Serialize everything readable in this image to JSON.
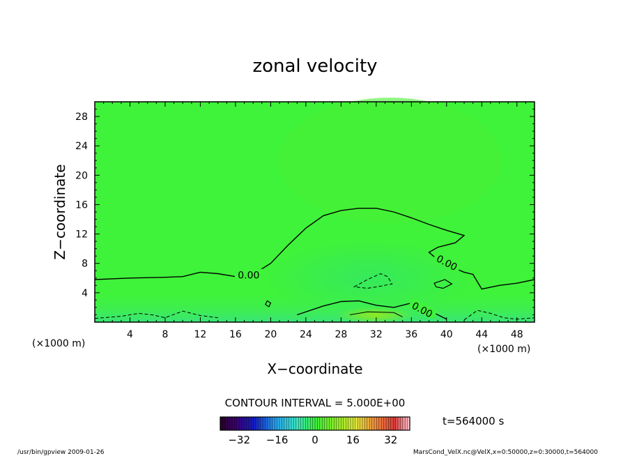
{
  "chart_data": {
    "type": "heatmap",
    "title": "zonal velocity",
    "xlabel": "X−coordinate",
    "ylabel": "Z−coordinate",
    "x_unit_left": "(×1000 m)",
    "x_unit_right": "(×1000 m)",
    "xlim": [
      0,
      50
    ],
    "ylim": [
      0,
      30
    ],
    "x_ticks": [
      4,
      8,
      12,
      16,
      20,
      24,
      28,
      32,
      36,
      40,
      44,
      48
    ],
    "y_ticks": [
      4,
      8,
      12,
      16,
      20,
      24,
      28
    ],
    "x_tick_labels": [
      "4",
      "8",
      "12",
      "16",
      "20",
      "24",
      "28",
      "32",
      "36",
      "40",
      "44",
      "48"
    ],
    "y_tick_labels": [
      "4",
      "8",
      "12",
      "16",
      "20",
      "24",
      "28"
    ],
    "contour_interval_text": "CONTOUR INTERVAL = 5.000E+00",
    "contour_label_text": "0.00",
    "contour_zero_line": [
      [
        0,
        5.8
      ],
      [
        4,
        6.0
      ],
      [
        8,
        6.1
      ],
      [
        10,
        6.2
      ],
      [
        12,
        6.8
      ],
      [
        14,
        6.6
      ],
      [
        16,
        6.2
      ],
      [
        18,
        6.5
      ],
      [
        20,
        8.0
      ],
      [
        22,
        10.5
      ],
      [
        24,
        12.8
      ],
      [
        26,
        14.5
      ],
      [
        28,
        15.2
      ],
      [
        30,
        15.5
      ],
      [
        32,
        15.5
      ],
      [
        34,
        15.0
      ],
      [
        36,
        14.2
      ],
      [
        38,
        13.3
      ],
      [
        40,
        12.5
      ],
      [
        42,
        11.8
      ],
      [
        41,
        10.8
      ],
      [
        39,
        10.2
      ],
      [
        38,
        9.5
      ],
      [
        39,
        8.5
      ],
      [
        40,
        7.8
      ],
      [
        41,
        7.3
      ],
      [
        42,
        6.8
      ],
      [
        43,
        6.5
      ],
      [
        43.5,
        5.5
      ],
      [
        44,
        4.5
      ],
      [
        46,
        5.0
      ],
      [
        48,
        5.3
      ],
      [
        50,
        5.8
      ]
    ],
    "colorbar": {
      "min": -40,
      "max": 40,
      "tick_values": [
        -32,
        -16,
        0,
        16,
        32
      ],
      "tick_labels": [
        "−32",
        "−16",
        "0",
        "16",
        "32"
      ]
    },
    "time_text": "t=564000 s"
  },
  "footer": {
    "left": "/usr/bin/gpview   2009-01-26",
    "right": "MarsCond_VelX.nc@VelX,x=0:50000,z=0:30000,t=564000"
  }
}
